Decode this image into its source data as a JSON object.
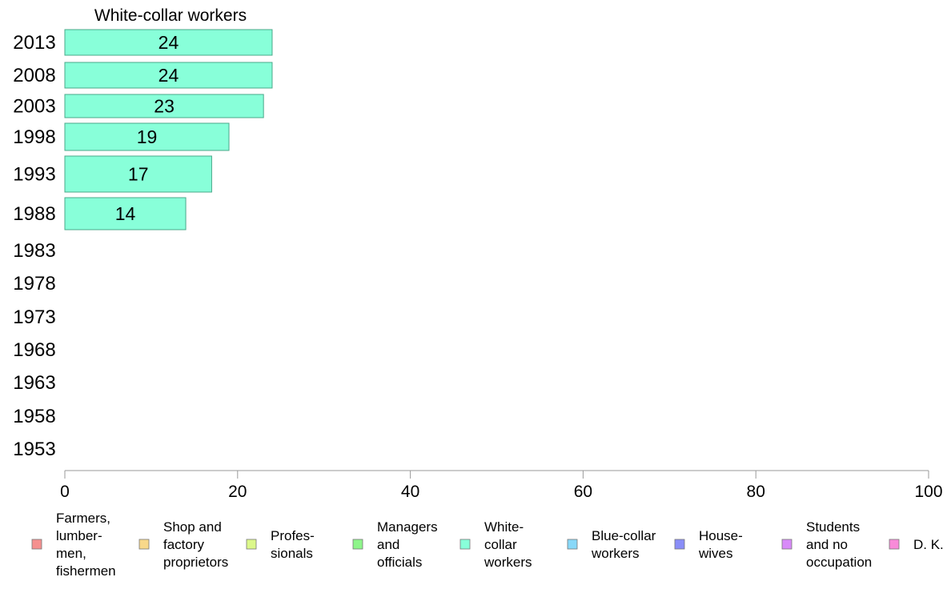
{
  "chart_data": {
    "type": "bar",
    "orientation": "horizontal",
    "title": "White-collar workers",
    "categories": [
      "2013",
      "2008",
      "2003",
      "1998",
      "1993",
      "1988",
      "1983",
      "1978",
      "1973",
      "1968",
      "1963",
      "1958",
      "1953"
    ],
    "series": [
      {
        "name": "White-collar workers",
        "values": [
          24,
          24,
          23,
          19,
          17,
          14,
          null,
          null,
          null,
          null,
          null,
          null,
          null
        ],
        "labels": [
          "24",
          "24",
          "23",
          "19",
          "17",
          "14",
          "",
          "",
          "",
          "",
          "",
          "",
          ""
        ]
      }
    ],
    "xlim": [
      0,
      100
    ],
    "xticks": [
      "0",
      "20",
      "40",
      "60",
      "80",
      "100"
    ],
    "grid": false,
    "bar_color": "#88ffd9",
    "bar_stroke": "#4aa88a",
    "legend": {
      "placement": "bottom",
      "items": [
        {
          "label_lines": [
            "Farmers,",
            "lumber-",
            "men,",
            "fishermen"
          ],
          "color": "#f5908f"
        },
        {
          "label_lines": [
            "Shop and",
            "factory",
            "proprietors"
          ],
          "color": "#f8d88a"
        },
        {
          "label_lines": [
            "Profes-",
            "sionals"
          ],
          "color": "#dcf88a"
        },
        {
          "label_lines": [
            "Managers",
            "and",
            "officials"
          ],
          "color": "#8ef58a"
        },
        {
          "label_lines": [
            "White-",
            "collar",
            "workers"
          ],
          "color": "#88ffd9"
        },
        {
          "label_lines": [
            "Blue-collar",
            "workers"
          ],
          "color": "#88d8f8"
        },
        {
          "label_lines": [
            "House-",
            "wives"
          ],
          "color": "#8a8ef8"
        },
        {
          "label_lines": [
            "Students",
            "and no",
            "occupation"
          ],
          "color": "#d88af8"
        },
        {
          "label_lines": [
            "D. K."
          ],
          "color": "#f88ad8"
        }
      ]
    }
  }
}
